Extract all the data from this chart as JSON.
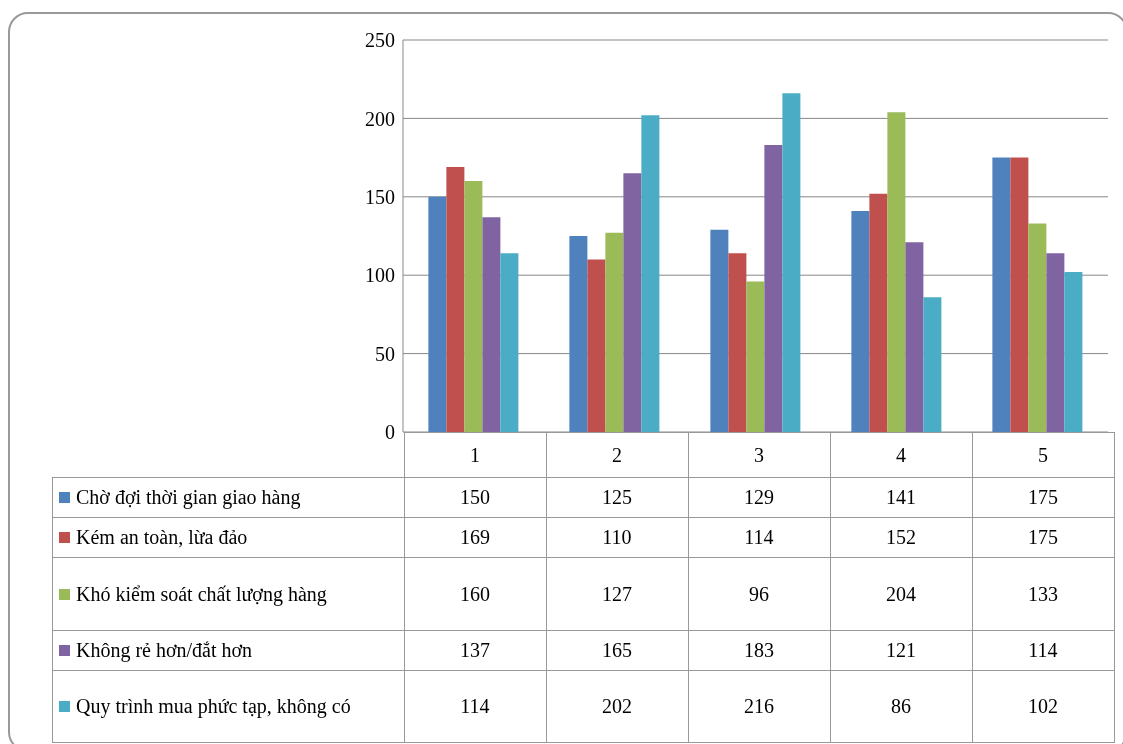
{
  "chart_data": {
    "type": "bar",
    "categories": [
      "1",
      "2",
      "3",
      "4",
      "5"
    ],
    "series": [
      {
        "name": "Chờ đợi thời gian giao hàng",
        "color": "#4f81bd",
        "values": [
          150,
          125,
          129,
          141,
          175
        ]
      },
      {
        "name": "Kém an toàn, lừa đảo",
        "color": "#c0504d",
        "values": [
          169,
          110,
          114,
          152,
          175
        ]
      },
      {
        "name": "Khó kiểm soát chất lượng hàng",
        "color": "#9bbb59",
        "values": [
          160,
          127,
          96,
          204,
          133
        ]
      },
      {
        "name": "Không rẻ hơn/đắt hơn",
        "color": "#8064a2",
        "values": [
          137,
          165,
          183,
          121,
          114
        ]
      },
      {
        "name": "Quy trình mua phức tạp, không có",
        "color": "#4bacc6",
        "values": [
          114,
          202,
          216,
          86,
          102
        ]
      }
    ],
    "ylim": [
      0,
      250
    ],
    "yticks": [
      0,
      50,
      100,
      150,
      200,
      250
    ],
    "grid": "y",
    "legend": "bottom",
    "data_labels": true
  }
}
